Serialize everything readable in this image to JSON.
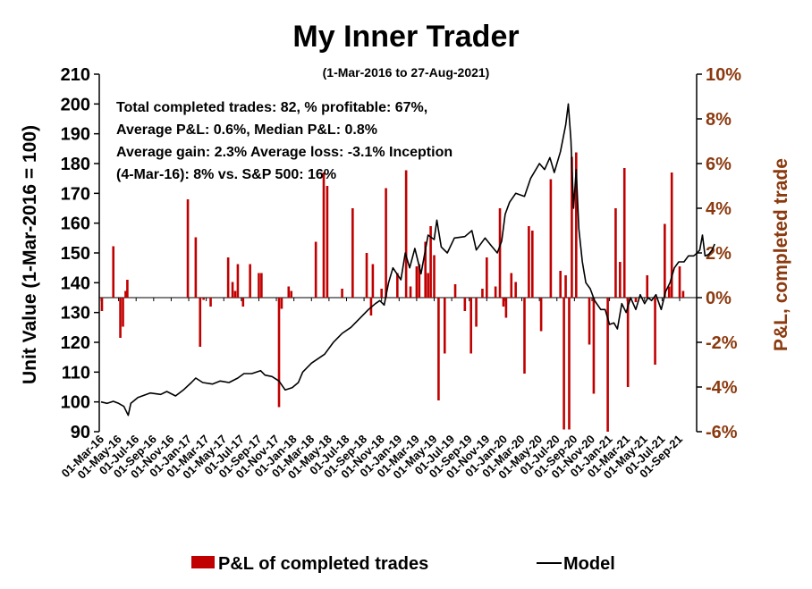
{
  "chart_data": {
    "type": "bar+line",
    "title": "My Inner Trader",
    "subtitle": "(1-Mar-2016 to 27-Aug-2021)",
    "ylabel_left": "Unit Value (1-Mar-2016 = 100)",
    "ylabel_right": "P&L, completed trade",
    "ylim_left": [
      90,
      210
    ],
    "ylim_right": [
      -6,
      10
    ],
    "left_ticks": [
      "210",
      "200",
      "190",
      "180",
      "170",
      "160",
      "150",
      "140",
      "130",
      "120",
      "110",
      "100",
      "90"
    ],
    "right_ticks": [
      "10%",
      "8%",
      "6%",
      "4%",
      "2%",
      "0%",
      "-2%",
      "-4%",
      "-6%"
    ],
    "x_ticks": [
      "01-Mar-16",
      "01-May-16",
      "01-Jul-16",
      "01-Sep-16",
      "01-Nov-16",
      "01-Jan-17",
      "01-Mar-17",
      "01-May-17",
      "01-Jul-17",
      "01-Sep-17",
      "01-Nov-17",
      "01-Jan-18",
      "01-Mar-18",
      "01-May-18",
      "01-Jul-18",
      "01-Sep-18",
      "01-Nov-18",
      "01-Jan-19",
      "01-Mar-19",
      "01-May-19",
      "01-Jul-19",
      "01-Sep-19",
      "01-Nov-19",
      "01-Jan-20",
      "01-Mar-20",
      "01-May-20",
      "01-Jul-20",
      "01-Sep-20",
      "01-Nov-20",
      "01-Jan-21",
      "01-Mar-21",
      "01-May-21",
      "01-Jul-21",
      "01-Sep-21"
    ],
    "x_range_months": [
      0,
      66
    ],
    "annotation_lines": [
      "Total completed trades: 82, % profitable: 67%,",
      "Average P&L: 0.6%, Median P&L: 0.8%",
      "Average gain: 2.3% Average loss: -3.1%  Inception",
      "(4-Mar-16): 8% vs. S&P 500: 16%"
    ],
    "series": [
      {
        "name": "P&L of completed trades",
        "type": "bar",
        "color": "#c00000",
        "axis": "right",
        "points": [
          [
            0.1,
            -0.6
          ],
          [
            1.4,
            2.3
          ],
          [
            2.2,
            -1.8
          ],
          [
            2.5,
            -1.3
          ],
          [
            2.8,
            0.3
          ],
          [
            3.0,
            0.8
          ],
          [
            9.9,
            4.4
          ],
          [
            10.8,
            2.7
          ],
          [
            11.3,
            -2.2
          ],
          [
            11.7,
            -0.1
          ],
          [
            12.5,
            -0.4
          ],
          [
            14.5,
            1.8
          ],
          [
            15.0,
            0.7
          ],
          [
            15.3,
            0.3
          ],
          [
            15.6,
            1.5
          ],
          [
            16.2,
            -0.4
          ],
          [
            17.0,
            1.5
          ],
          [
            18.0,
            1.1
          ],
          [
            18.3,
            1.1
          ],
          [
            20.3,
            -4.9
          ],
          [
            20.6,
            -0.5
          ],
          [
            21.4,
            0.5
          ],
          [
            21.7,
            0.3
          ],
          [
            24.5,
            2.5
          ],
          [
            25.4,
            5.6
          ],
          [
            25.8,
            5.0
          ],
          [
            27.5,
            0.4
          ],
          [
            28.7,
            4.0
          ],
          [
            30.3,
            2.0
          ],
          [
            30.8,
            -0.8
          ],
          [
            31.0,
            1.5
          ],
          [
            32.0,
            0.4
          ],
          [
            32.5,
            4.9
          ],
          [
            33.8,
            1.1
          ],
          [
            34.8,
            5.7
          ],
          [
            35.3,
            0.5
          ],
          [
            36.0,
            1.4
          ],
          [
            36.3,
            1.5
          ],
          [
            37.0,
            2.5
          ],
          [
            37.3,
            1.1
          ],
          [
            37.6,
            3.2
          ],
          [
            38.0,
            1.9
          ],
          [
            38.5,
            -4.6
          ],
          [
            39.2,
            -2.5
          ],
          [
            40.4,
            0.6
          ],
          [
            41.5,
            -0.6
          ],
          [
            42.2,
            -2.5
          ],
          [
            42.8,
            -1.3
          ],
          [
            43.5,
            0.4
          ],
          [
            44.0,
            1.8
          ],
          [
            45.0,
            0.5
          ],
          [
            45.5,
            4.0
          ],
          [
            45.9,
            -0.4
          ],
          [
            46.2,
            -0.9
          ],
          [
            46.8,
            1.1
          ],
          [
            47.3,
            0.7
          ],
          [
            48.3,
            -3.4
          ],
          [
            48.8,
            3.2
          ],
          [
            49.2,
            3.0
          ],
          [
            50.2,
            -1.5
          ],
          [
            51.3,
            5.3
          ],
          [
            52.4,
            1.2
          ],
          [
            52.8,
            -5.9
          ],
          [
            53.0,
            1.0
          ],
          [
            53.4,
            -5.9
          ],
          [
            53.7,
            6.3
          ],
          [
            54.2,
            6.5
          ],
          [
            55.7,
            -2.1
          ],
          [
            56.2,
            -4.3
          ],
          [
            57.8,
            -6.0
          ],
          [
            58.7,
            4.0
          ],
          [
            59.2,
            1.6
          ],
          [
            59.7,
            5.8
          ],
          [
            60.1,
            -4.0
          ],
          [
            61.0,
            -0.2
          ],
          [
            62.3,
            1.0
          ],
          [
            63.2,
            -3.0
          ],
          [
            64.3,
            3.3
          ],
          [
            64.8,
            0.5
          ],
          [
            65.1,
            5.6
          ],
          [
            66.0,
            1.4
          ],
          [
            66.4,
            0.3
          ]
        ]
      },
      {
        "name": "Model",
        "type": "line",
        "color": "#000000",
        "axis": "left",
        "points": [
          [
            0,
            100
          ],
          [
            0.7,
            99.5
          ],
          [
            1.4,
            100.2
          ],
          [
            2.0,
            99.5
          ],
          [
            2.6,
            98.5
          ],
          [
            3.1,
            95.5
          ],
          [
            3.4,
            99.5
          ],
          [
            4.2,
            101.5
          ],
          [
            5.6,
            103
          ],
          [
            6.8,
            102.5
          ],
          [
            7.5,
            103.5
          ],
          [
            8.5,
            102
          ],
          [
            9.4,
            104
          ],
          [
            10.3,
            106.5
          ],
          [
            10.8,
            108
          ],
          [
            11.6,
            106.5
          ],
          [
            12.7,
            106
          ],
          [
            13.6,
            107
          ],
          [
            14.6,
            106.5
          ],
          [
            15.6,
            108
          ],
          [
            16.3,
            109.5
          ],
          [
            17.2,
            109.5
          ],
          [
            18.2,
            110.5
          ],
          [
            18.7,
            109
          ],
          [
            19.5,
            108.5
          ],
          [
            20.3,
            107
          ],
          [
            21.0,
            104
          ],
          [
            21.8,
            104.8
          ],
          [
            22.5,
            106.5
          ],
          [
            23.0,
            110
          ],
          [
            24.0,
            113
          ],
          [
            25.5,
            116
          ],
          [
            26.5,
            120
          ],
          [
            27.5,
            123
          ],
          [
            28.5,
            125
          ],
          [
            29.5,
            128
          ],
          [
            30.5,
            131
          ],
          [
            31.3,
            133
          ],
          [
            31.8,
            134
          ],
          [
            32.3,
            132.5
          ],
          [
            32.8,
            140
          ],
          [
            33.3,
            145
          ],
          [
            34.2,
            141
          ],
          [
            34.7,
            150
          ],
          [
            35.2,
            145
          ],
          [
            35.8,
            151.5
          ],
          [
            36.5,
            143
          ],
          [
            37.3,
            156
          ],
          [
            38.0,
            154.5
          ],
          [
            38.3,
            161
          ],
          [
            38.8,
            152
          ],
          [
            39.5,
            150
          ],
          [
            40.3,
            155
          ],
          [
            41.5,
            155.5
          ],
          [
            42.3,
            157.5
          ],
          [
            42.8,
            151
          ],
          [
            43.8,
            155
          ],
          [
            44.5,
            152.5
          ],
          [
            45.2,
            150
          ],
          [
            45.7,
            154
          ],
          [
            46.1,
            163
          ],
          [
            46.6,
            167
          ],
          [
            47.3,
            170
          ],
          [
            48.3,
            169
          ],
          [
            49.0,
            175
          ],
          [
            50.0,
            180
          ],
          [
            50.6,
            178
          ],
          [
            51.2,
            182
          ],
          [
            51.7,
            177
          ],
          [
            52.4,
            184
          ],
          [
            53.0,
            193
          ],
          [
            53.3,
            200
          ],
          [
            53.6,
            188
          ],
          [
            53.9,
            165
          ],
          [
            54.2,
            178
          ],
          [
            54.5,
            158
          ],
          [
            54.9,
            147
          ],
          [
            55.3,
            140
          ],
          [
            55.8,
            138
          ],
          [
            56.3,
            134
          ],
          [
            57.0,
            131
          ],
          [
            57.5,
            131
          ],
          [
            58.0,
            126
          ],
          [
            58.5,
            126.5
          ],
          [
            58.9,
            124.5
          ],
          [
            59.4,
            133
          ],
          [
            59.9,
            130
          ],
          [
            60.4,
            135
          ],
          [
            61.0,
            131
          ],
          [
            61.5,
            136
          ],
          [
            62.0,
            133
          ],
          [
            62.4,
            135
          ],
          [
            62.8,
            134
          ],
          [
            63.3,
            136
          ],
          [
            63.9,
            131
          ],
          [
            64.4,
            137
          ],
          [
            64.9,
            140
          ],
          [
            65.4,
            145
          ],
          [
            65.9,
            147
          ],
          [
            66.5,
            147
          ],
          [
            67.0,
            149
          ],
          [
            67.6,
            149
          ],
          [
            68.0,
            150
          ],
          [
            68.3,
            151
          ],
          [
            68.6,
            156
          ],
          [
            68.9,
            149
          ],
          [
            69.3,
            149.5
          ],
          [
            69.7,
            151
          ],
          [
            70.0,
            153
          ]
        ]
      }
    ],
    "legend": [
      "P&L of completed trades",
      "Model"
    ]
  }
}
